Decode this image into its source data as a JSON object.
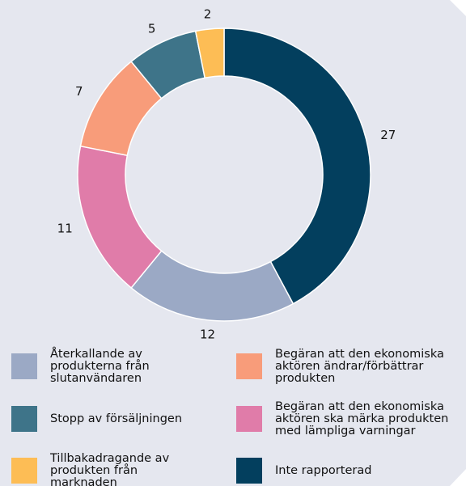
{
  "chart_data": {
    "type": "donut",
    "categories": [
      "Inte rapporterad",
      "Återkallande av produkterna från slutanvändaren",
      "Begäran att den ekonomiska aktören ska märka produkten med lämpliga varningar",
      "Begäran att den ekonomiska aktören ändrar/förbättrar produkten",
      "Stopp av försäljningen",
      "Tillbakadragande av produkten från marknaden"
    ],
    "values": [
      27,
      12,
      11,
      7,
      5,
      2
    ],
    "colors": [
      "#033f5e",
      "#9ba9c5",
      "#e07ca9",
      "#f89c7a",
      "#3e7489",
      "#fdbd55"
    ],
    "legend": true
  }
}
